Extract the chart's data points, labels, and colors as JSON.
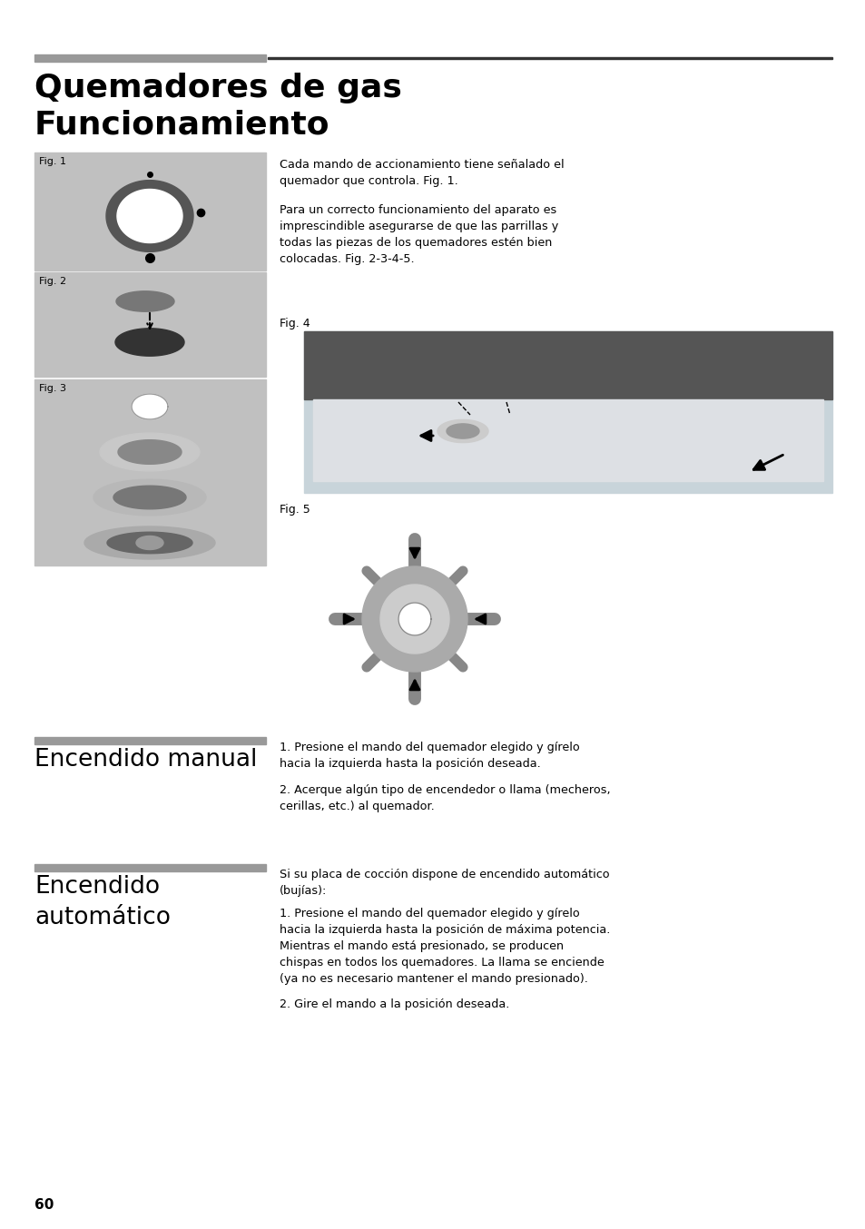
{
  "bg_color": "#ffffff",
  "title_line1": "Quemadores de gas",
  "title_line2": "Funcionamiento",
  "header_bar_color": "#999999",
  "fig_bg_color": "#c0c0c0",
  "page_number": "60",
  "para1": "Cada mando de accionamiento tiene señalado el\nquemador que controla. Fig. 1.",
  "para2": "Para un correcto funcionamiento del aparato es\nimprescindible asegurarse de que las parrillas y\ntodas las piezas de los quemadores estén bien\ncolocadas. Fig. 2-3-4-5.",
  "section1_title": "Encendido manual",
  "section1_para1": "1. Presione el mando del quemador elegido y gírelo\nhacia la izquierda hasta la posición deseada.",
  "section1_para2": "2. Acerque algún tipo de encendedor o llama (mecheros,\ncerillas, etc.) al quemador.",
  "section2_title": "Encendido\nautomático",
  "section2_para1": "Si su placa de cocción dispone de encendido automático\n(bujías):",
  "section2_para2": "1. Presione el mando del quemador elegido y gírelo\nhacia la izquierda hasta la posición de máxima potencia.\nMientras el mando está presionado, se producen\nchispas en todos los quemadores. La llama se enciende\n(ya no es necesario mantener el mando presionado).",
  "section2_para3": "2. Gire el mando a la posición deseada."
}
